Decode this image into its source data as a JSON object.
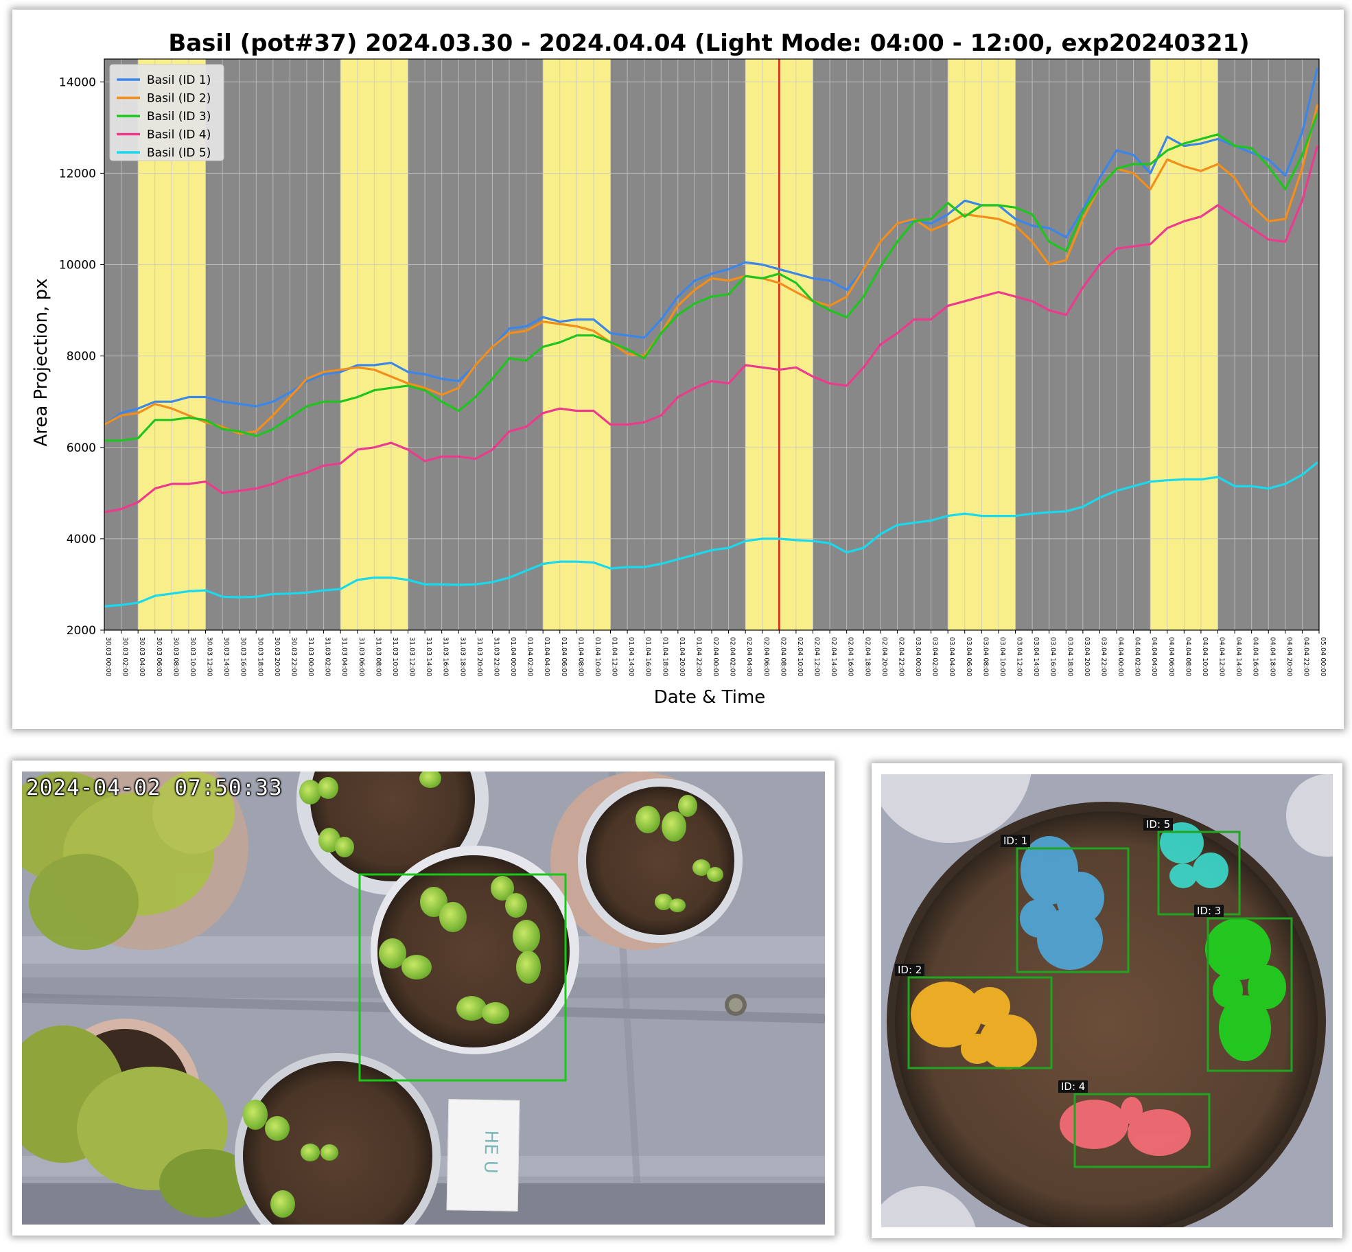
{
  "chart_data": {
    "type": "line",
    "title": "Basil (pot#37) 2024.03.30 - 2024.04.04 (Light Mode: 04:00 - 12:00, exp20240321)",
    "xlabel": "Date & Time",
    "ylabel": "Area Projection, px",
    "x_range": [
      "30.03 00:00",
      "05.04 00:00"
    ],
    "ylim": [
      2000,
      14500
    ],
    "yticks": [
      2000,
      4000,
      6000,
      8000,
      10000,
      12000,
      14000
    ],
    "xtick_interval_hours": 2,
    "grid": true,
    "legend_position": "top-left",
    "light_periods": [
      [
        "30.03 04:00",
        "30.03 12:00"
      ],
      [
        "31.03 04:00",
        "31.03 12:00"
      ],
      [
        "01.04 04:00",
        "01.04 12:00"
      ],
      [
        "02.04 04:00",
        "02.04 12:00"
      ],
      [
        "03.04 04:00",
        "03.04 12:00"
      ],
      [
        "04.04 04:00",
        "04.04 12:00"
      ]
    ],
    "current_time_marker": "02.04 08:00",
    "x_hours_note": "hours since 30.03 00:00",
    "series": [
      {
        "name": "Basil (ID 1)",
        "color": "#3b86e8",
        "x": [
          0,
          2,
          4,
          6,
          8,
          10,
          12,
          14,
          16,
          18,
          20,
          22,
          24,
          26,
          28,
          30,
          32,
          34,
          36,
          38,
          40,
          42,
          44,
          46,
          48,
          50,
          52,
          54,
          56,
          58,
          60,
          62,
          64,
          66,
          68,
          70,
          72,
          74,
          76,
          78,
          80,
          82,
          84,
          86,
          88,
          90,
          92,
          94,
          96,
          98,
          100,
          102,
          104,
          106,
          108,
          110,
          112,
          114,
          116,
          118,
          120,
          122,
          124,
          126,
          128,
          130,
          132,
          134,
          136,
          138,
          140,
          142,
          143.8
        ],
        "y": [
          6500,
          6750,
          6850,
          7000,
          7000,
          7100,
          7100,
          7000,
          6950,
          6900,
          7000,
          7200,
          7450,
          7600,
          7650,
          7800,
          7800,
          7850,
          7650,
          7600,
          7500,
          7450,
          7800,
          8200,
          8600,
          8650,
          8850,
          8750,
          8800,
          8800,
          8500,
          8450,
          8400,
          8800,
          9300,
          9650,
          9800,
          9900,
          10050,
          10000,
          9900,
          9800,
          9700,
          9650,
          9450,
          9900,
          10500,
          10900,
          10950,
          10900,
          11100,
          11400,
          11300,
          11300,
          11000,
          10850,
          10800,
          10600,
          11200,
          11900,
          12500,
          12400,
          12000,
          12800,
          12600,
          12650,
          12750,
          12600,
          12450,
          12300,
          11950,
          12900,
          14300
        ]
      },
      {
        "name": "Basil (ID 2)",
        "color": "#f28e1c",
        "x": [
          0,
          2,
          4,
          6,
          8,
          10,
          12,
          14,
          16,
          18,
          20,
          22,
          24,
          26,
          28,
          30,
          32,
          34,
          36,
          38,
          40,
          42,
          44,
          46,
          48,
          50,
          52,
          54,
          56,
          58,
          60,
          62,
          64,
          66,
          68,
          70,
          72,
          74,
          76,
          78,
          80,
          82,
          84,
          86,
          88,
          90,
          92,
          94,
          96,
          98,
          100,
          102,
          104,
          106,
          108,
          110,
          112,
          114,
          116,
          118,
          120,
          122,
          124,
          126,
          128,
          130,
          132,
          134,
          136,
          138,
          140,
          142,
          143.8
        ],
        "y": [
          6500,
          6700,
          6750,
          6950,
          6850,
          6700,
          6550,
          6450,
          6300,
          6350,
          6700,
          7100,
          7500,
          7650,
          7700,
          7750,
          7700,
          7550,
          7400,
          7300,
          7150,
          7300,
          7800,
          8200,
          8500,
          8550,
          8750,
          8700,
          8650,
          8550,
          8300,
          8050,
          8000,
          8500,
          9100,
          9450,
          9700,
          9650,
          9750,
          9700,
          9600,
          9400,
          9200,
          9100,
          9300,
          9900,
          10500,
          10900,
          11000,
          10750,
          10900,
          11100,
          11050,
          11000,
          10850,
          10500,
          10000,
          10100,
          11000,
          11700,
          12100,
          12000,
          11650,
          12300,
          12150,
          12050,
          12200,
          11900,
          11300,
          10950,
          11000,
          12100,
          13500
        ]
      },
      {
        "name": "Basil (ID 3)",
        "color": "#1fc41f",
        "x": [
          0,
          2,
          4,
          6,
          8,
          10,
          12,
          14,
          16,
          18,
          20,
          22,
          24,
          26,
          28,
          30,
          32,
          34,
          36,
          38,
          40,
          42,
          44,
          46,
          48,
          50,
          52,
          54,
          56,
          58,
          60,
          62,
          64,
          66,
          68,
          70,
          72,
          74,
          76,
          78,
          80,
          82,
          84,
          86,
          88,
          90,
          92,
          94,
          96,
          98,
          100,
          102,
          104,
          106,
          108,
          110,
          112,
          114,
          116,
          118,
          120,
          122,
          124,
          126,
          128,
          130,
          132,
          134,
          136,
          138,
          140,
          142,
          143.8
        ],
        "y": [
          6150,
          6150,
          6200,
          6600,
          6600,
          6650,
          6600,
          6400,
          6350,
          6250,
          6400,
          6650,
          6900,
          7000,
          7000,
          7100,
          7250,
          7300,
          7350,
          7250,
          7000,
          6800,
          7100,
          7500,
          7950,
          7900,
          8200,
          8300,
          8450,
          8450,
          8300,
          8150,
          7950,
          8500,
          8900,
          9150,
          9300,
          9350,
          9750,
          9700,
          9800,
          9600,
          9200,
          9000,
          8850,
          9300,
          9950,
          10500,
          10950,
          11000,
          11350,
          11050,
          11300,
          11300,
          11250,
          11100,
          10500,
          10300,
          11150,
          11700,
          12100,
          12200,
          12200,
          12500,
          12650,
          12750,
          12850,
          12600,
          12550,
          12150,
          11650,
          12400,
          13300
        ]
      },
      {
        "name": "Basil (ID 4)",
        "color": "#ec3b8d",
        "x": [
          0,
          2,
          4,
          6,
          8,
          10,
          12,
          14,
          16,
          18,
          20,
          22,
          24,
          26,
          28,
          30,
          32,
          34,
          36,
          38,
          40,
          42,
          44,
          46,
          48,
          50,
          52,
          54,
          56,
          58,
          60,
          62,
          64,
          66,
          68,
          70,
          72,
          74,
          76,
          78,
          80,
          82,
          84,
          86,
          88,
          90,
          92,
          94,
          96,
          98,
          100,
          102,
          104,
          106,
          108,
          110,
          112,
          114,
          116,
          118,
          120,
          122,
          124,
          126,
          128,
          130,
          132,
          134,
          136,
          138,
          140,
          142,
          143.8
        ],
        "y": [
          4580,
          4650,
          4800,
          5100,
          5200,
          5200,
          5250,
          5000,
          5050,
          5100,
          5200,
          5350,
          5450,
          5600,
          5650,
          5950,
          6000,
          6100,
          5950,
          5700,
          5800,
          5800,
          5750,
          5950,
          6350,
          6450,
          6750,
          6850,
          6800,
          6800,
          6500,
          6500,
          6550,
          6700,
          7100,
          7300,
          7450,
          7400,
          7800,
          7750,
          7700,
          7750,
          7550,
          7400,
          7350,
          7750,
          8250,
          8500,
          8800,
          8800,
          9100,
          9200,
          9300,
          9400,
          9300,
          9200,
          9000,
          8900,
          9500,
          10000,
          10350,
          10400,
          10450,
          10800,
          10950,
          11050,
          11300,
          11050,
          10800,
          10550,
          10500,
          11400,
          12600
        ]
      },
      {
        "name": "Basil (ID 5)",
        "color": "#19d9ee",
        "x": [
          0,
          2,
          4,
          6,
          8,
          10,
          12,
          14,
          16,
          18,
          20,
          22,
          24,
          26,
          28,
          30,
          32,
          34,
          36,
          38,
          40,
          42,
          44,
          46,
          48,
          50,
          52,
          54,
          56,
          58,
          60,
          62,
          64,
          66,
          68,
          70,
          72,
          74,
          76,
          78,
          80,
          82,
          84,
          86,
          88,
          90,
          92,
          94,
          96,
          98,
          100,
          102,
          104,
          106,
          108,
          110,
          112,
          114,
          116,
          118,
          120,
          122,
          124,
          126,
          128,
          130,
          132,
          134,
          136,
          138,
          140,
          142,
          143.8
        ],
        "y": [
          2520,
          2550,
          2600,
          2750,
          2800,
          2850,
          2870,
          2730,
          2720,
          2730,
          2790,
          2800,
          2820,
          2870,
          2900,
          3100,
          3150,
          3150,
          3100,
          3000,
          3000,
          2990,
          3000,
          3050,
          3150,
          3300,
          3450,
          3500,
          3500,
          3480,
          3350,
          3380,
          3380,
          3450,
          3550,
          3650,
          3750,
          3800,
          3950,
          4000,
          4000,
          3970,
          3950,
          3900,
          3700,
          3800,
          4100,
          4300,
          4350,
          4400,
          4500,
          4550,
          4500,
          4500,
          4500,
          4550,
          4580,
          4600,
          4700,
          4900,
          5050,
          5150,
          5250,
          5280,
          5300,
          5300,
          5350,
          5150,
          5150,
          5100,
          5200,
          5400,
          5670
        ]
      }
    ]
  },
  "camera": {
    "timestamp": "2024-04-02  07:50:33",
    "note_card_text": "HE U"
  },
  "segmentation": {
    "labels": [
      "ID: 1",
      "ID: 2",
      "ID: 3",
      "ID: 4",
      "ID: 5"
    ]
  }
}
